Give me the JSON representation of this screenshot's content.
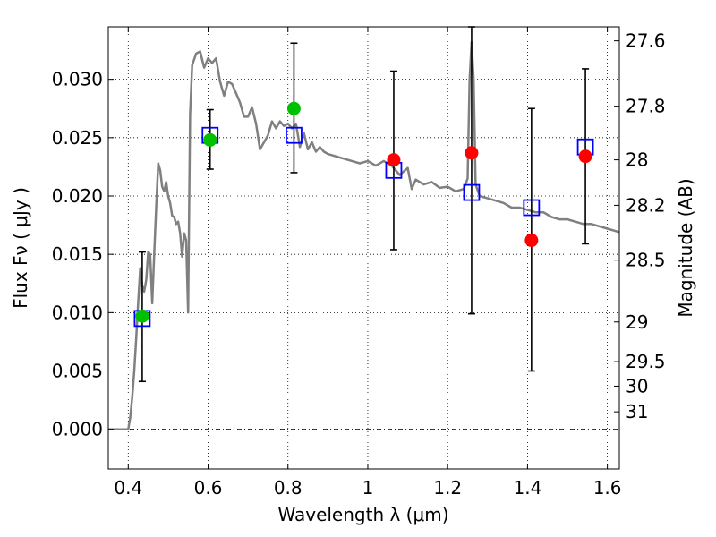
{
  "chart_data": {
    "type": "scatter",
    "xlabel": "Wavelength  λ (μm)",
    "ylabel": "Flux  Fν  ( μJy )",
    "y2label": "Magnitude (AB)",
    "xlim": [
      0.35,
      1.63
    ],
    "ylim": [
      -0.0034,
      0.0345
    ],
    "x_ticks": [
      0.4,
      0.6,
      0.8,
      1.0,
      1.2,
      1.4,
      1.6
    ],
    "x_tick_labels": [
      "0.4",
      "0.6",
      "0.8",
      "1",
      "1.2",
      "1.4",
      "1.6"
    ],
    "y_ticks": [
      0.0,
      0.005,
      0.01,
      0.015,
      0.02,
      0.025,
      0.03
    ],
    "y_tick_labels": [
      "0.000",
      "0.005",
      "0.010",
      "0.015",
      "0.020",
      "0.025",
      "0.030"
    ],
    "y2_ticks": [
      {
        "label": "27.6",
        "flux": 0.0333
      },
      {
        "label": "27.8",
        "flux": 0.0277
      },
      {
        "label": "28",
        "flux": 0.0231
      },
      {
        "label": "28.2",
        "flux": 0.0192
      },
      {
        "label": "28.5",
        "flux": 0.0145
      },
      {
        "label": "29",
        "flux": 0.0092
      },
      {
        "label": "29.5",
        "flux": 0.0058
      },
      {
        "label": "30",
        "flux": 0.0037
      },
      {
        "label": "31",
        "flux": 0.0015
      }
    ],
    "grid": true,
    "sed_model": {
      "color": "#808080",
      "x": [
        0.35,
        0.4,
        0.405,
        0.41,
        0.415,
        0.42,
        0.425,
        0.43,
        0.435,
        0.44,
        0.445,
        0.45,
        0.455,
        0.46,
        0.465,
        0.47,
        0.475,
        0.48,
        0.485,
        0.49,
        0.495,
        0.5,
        0.505,
        0.51,
        0.515,
        0.52,
        0.525,
        0.53,
        0.535,
        0.54,
        0.545,
        0.55,
        0.555,
        0.56,
        0.57,
        0.58,
        0.59,
        0.6,
        0.61,
        0.62,
        0.63,
        0.64,
        0.65,
        0.66,
        0.67,
        0.68,
        0.69,
        0.7,
        0.71,
        0.72,
        0.73,
        0.74,
        0.75,
        0.76,
        0.77,
        0.78,
        0.79,
        0.8,
        0.81,
        0.82,
        0.83,
        0.84,
        0.85,
        0.86,
        0.87,
        0.88,
        0.89,
        0.9,
        0.92,
        0.94,
        0.96,
        0.98,
        1.0,
        1.02,
        1.04,
        1.06,
        1.08,
        1.1,
        1.11,
        1.12,
        1.14,
        1.16,
        1.18,
        1.2,
        1.22,
        1.24,
        1.25,
        1.255,
        1.26,
        1.265,
        1.27,
        1.28,
        1.3,
        1.32,
        1.34,
        1.36,
        1.38,
        1.4,
        1.42,
        1.44,
        1.46,
        1.48,
        1.5,
        1.52,
        1.54,
        1.56,
        1.58,
        1.6,
        1.62,
        1.63
      ],
      "y": [
        0.0,
        0.0,
        0.001,
        0.0028,
        0.005,
        0.0078,
        0.011,
        0.0138,
        0.0124,
        0.0118,
        0.0128,
        0.0152,
        0.015,
        0.0108,
        0.015,
        0.019,
        0.0228,
        0.0222,
        0.0208,
        0.0204,
        0.0212,
        0.02,
        0.0194,
        0.0183,
        0.0182,
        0.0176,
        0.0178,
        0.0168,
        0.0148,
        0.0168,
        0.0162,
        0.01,
        0.027,
        0.0312,
        0.0322,
        0.0324,
        0.031,
        0.0318,
        0.0314,
        0.0318,
        0.0298,
        0.0286,
        0.0298,
        0.0296,
        0.0288,
        0.028,
        0.0268,
        0.0268,
        0.0276,
        0.0262,
        0.024,
        0.0246,
        0.0252,
        0.0264,
        0.0258,
        0.0264,
        0.026,
        0.0262,
        0.0258,
        0.0262,
        0.0242,
        0.0254,
        0.024,
        0.0246,
        0.0238,
        0.0242,
        0.0238,
        0.0236,
        0.0234,
        0.0232,
        0.023,
        0.0228,
        0.023,
        0.0226,
        0.023,
        0.0226,
        0.0218,
        0.0224,
        0.0206,
        0.0214,
        0.021,
        0.0212,
        0.0207,
        0.0208,
        0.0204,
        0.0206,
        0.0215,
        0.03,
        0.0332,
        0.03,
        0.021,
        0.02,
        0.0198,
        0.0196,
        0.0194,
        0.019,
        0.019,
        0.0188,
        0.0186,
        0.0186,
        0.0182,
        0.018,
        0.018,
        0.0178,
        0.0176,
        0.0176,
        0.0174,
        0.0172,
        0.017,
        0.0169
      ]
    },
    "series": [
      {
        "name": "",
        "marker": "open-square",
        "color": "#0000ff",
        "x": [
          0.435,
          0.605,
          0.815,
          1.065,
          1.26,
          1.41,
          1.545
        ],
        "y": [
          0.0095,
          0.0252,
          0.0252,
          0.0222,
          0.0203,
          0.019,
          0.0242
        ]
      },
      {
        "name": "",
        "marker": "filled-circle",
        "color": "#00c000",
        "x": [
          0.435,
          0.605,
          0.815
        ],
        "y": [
          0.0097,
          0.0248,
          0.0275
        ],
        "yerr_low": [
          0.0041,
          0.0223,
          0.022
        ],
        "yerr_high": [
          0.0152,
          0.0274,
          0.0331
        ]
      },
      {
        "name": "",
        "marker": "filled-circle",
        "color": "#ff0000",
        "x": [
          1.065,
          1.26,
          1.41,
          1.545
        ],
        "y": [
          0.0231,
          0.0237,
          0.0162,
          0.0234
        ],
        "yerr_low": [
          0.0154,
          0.0099,
          0.005,
          0.0159
        ],
        "yerr_high": [
          0.0307,
          0.0345,
          0.0275,
          0.0309
        ]
      }
    ]
  }
}
